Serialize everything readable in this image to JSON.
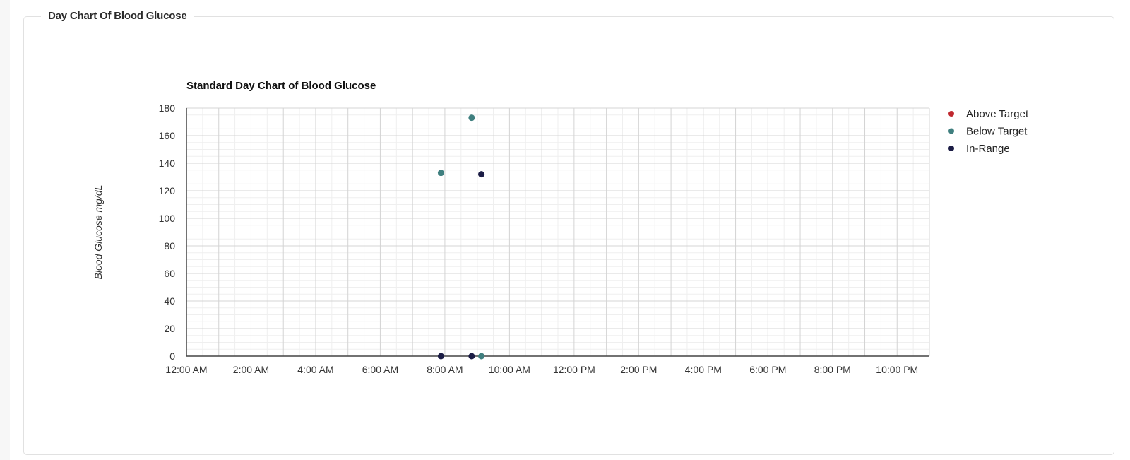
{
  "panel": {
    "title": "Day Chart Of Blood Glucose"
  },
  "chart_data": {
    "type": "scatter",
    "title": "Standard Day Chart of Blood Glucose",
    "ylabel": "Blood Glucose mg/dL",
    "xlabel": "",
    "xlim_hours": [
      0,
      23
    ],
    "ylim": [
      0,
      180
    ],
    "yticks": [
      0,
      20,
      40,
      60,
      80,
      100,
      120,
      140,
      160,
      180
    ],
    "xticks": [
      {
        "hour": 0,
        "label": "12:00 AM"
      },
      {
        "hour": 2,
        "label": "2:00 AM"
      },
      {
        "hour": 4,
        "label": "4:00 AM"
      },
      {
        "hour": 6,
        "label": "6:00 AM"
      },
      {
        "hour": 8,
        "label": "8:00 AM"
      },
      {
        "hour": 10,
        "label": "10:00 AM"
      },
      {
        "hour": 12,
        "label": "12:00 PM"
      },
      {
        "hour": 14,
        "label": "2:00 PM"
      },
      {
        "hour": 16,
        "label": "4:00 PM"
      },
      {
        "hour": 18,
        "label": "6:00 PM"
      },
      {
        "hour": 20,
        "label": "8:00 PM"
      },
      {
        "hour": 22,
        "label": "10:00 PM"
      }
    ],
    "grid": true,
    "legend_position": "right",
    "series": [
      {
        "name": "Above Target",
        "color": "#c0282f",
        "points": []
      },
      {
        "name": "Below Target",
        "color": "#3f7f7f",
        "points": [
          {
            "x": "7:53 AM",
            "hour": 7.88,
            "y": 133
          },
          {
            "x": "8:50 AM",
            "hour": 8.83,
            "y": 173
          },
          {
            "x": "9:08 AM",
            "hour": 9.13,
            "y": 0
          }
        ]
      },
      {
        "name": "In-Range",
        "color": "#1b1c45",
        "points": [
          {
            "x": "7:53 AM",
            "hour": 7.88,
            "y": 0
          },
          {
            "x": "8:50 AM",
            "hour": 8.83,
            "y": 0
          },
          {
            "x": "9:08 AM",
            "hour": 9.13,
            "y": 132
          }
        ]
      }
    ]
  }
}
